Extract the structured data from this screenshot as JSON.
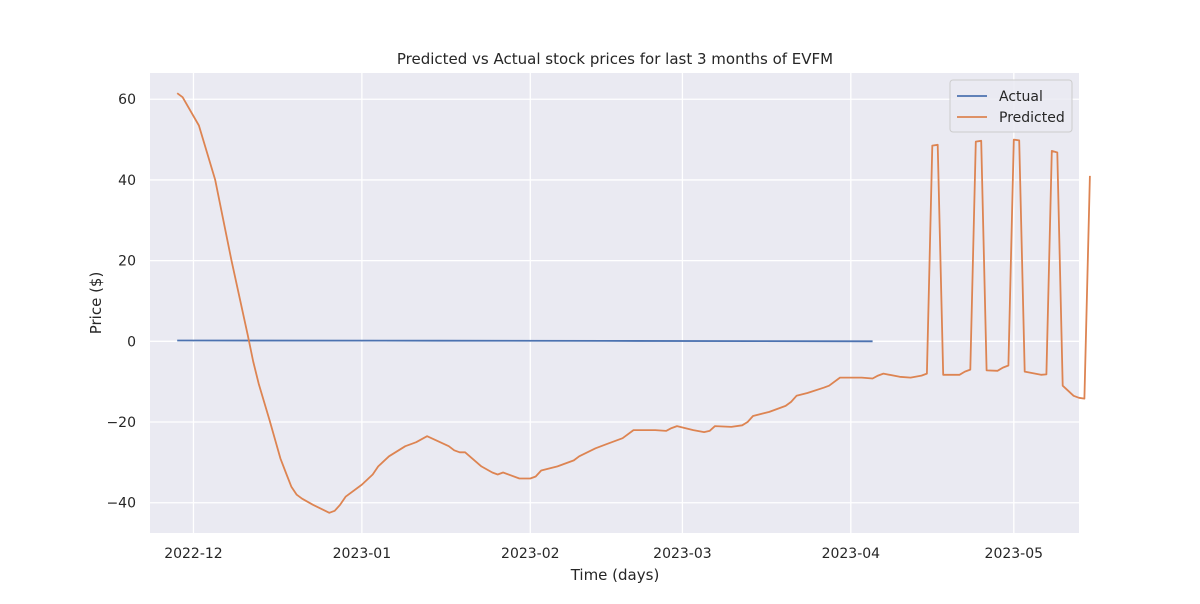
{
  "chart_data": {
    "type": "line",
    "title": "Predicted vs Actual stock prices for last 3 months of EVFM",
    "xlabel": "Time (days)",
    "ylabel": "Price ($)",
    "xlim": [
      "2022-11-23",
      "2023-05-13"
    ],
    "ylim": [
      -47.5,
      66.5
    ],
    "x_ticks": [
      "2022-12-01",
      "2023-01-01",
      "2023-02-01",
      "2023-03-01",
      "2023-04-01",
      "2023-05-01"
    ],
    "x_tick_labels": [
      "2022-12",
      "2023-01",
      "2023-02",
      "2023-03",
      "2023-04",
      "2023-05"
    ],
    "y_ticks": [
      -40,
      -20,
      0,
      20,
      40,
      60
    ],
    "y_tick_labels": [
      "−40",
      "−20",
      "0",
      "20",
      "40",
      "60"
    ],
    "grid": true,
    "legend_position": "top-right",
    "background_color": "#eaeaf2",
    "grid_color": "#ffffff",
    "series": [
      {
        "name": "Actual",
        "color": "#4c72b0",
        "points": [
          [
            "2022-11-28",
            0.2
          ],
          [
            "2023-01-15",
            0.15
          ],
          [
            "2023-02-15",
            0.1
          ],
          [
            "2023-03-15",
            0.05
          ],
          [
            "2023-04-05",
            0.0
          ]
        ]
      },
      {
        "name": "Predicted",
        "color": "#dd8452",
        "points": [
          [
            "2022-11-28",
            61.5
          ],
          [
            "2022-11-29",
            60.5
          ],
          [
            "2022-12-02",
            53.5
          ],
          [
            "2022-12-05",
            40.0
          ],
          [
            "2022-12-08",
            20.0
          ],
          [
            "2022-12-11",
            1.5
          ],
          [
            "2022-12-12",
            -5.0
          ],
          [
            "2022-12-13",
            -10.5
          ],
          [
            "2022-12-15",
            -19.5
          ],
          [
            "2022-12-17",
            -29.0
          ],
          [
            "2022-12-18",
            -32.5
          ],
          [
            "2022-12-19",
            -36.0
          ],
          [
            "2022-12-20",
            -38.0
          ],
          [
            "2022-12-21",
            -39.0
          ],
          [
            "2022-12-23",
            -40.5
          ],
          [
            "2022-12-26",
            -42.5
          ],
          [
            "2022-12-27",
            -42.0
          ],
          [
            "2022-12-28",
            -40.5
          ],
          [
            "2022-12-29",
            -38.5
          ],
          [
            "2023-01-01",
            -35.5
          ],
          [
            "2023-01-03",
            -33.0
          ],
          [
            "2023-01-04",
            -31.0
          ],
          [
            "2023-01-06",
            -28.5
          ],
          [
            "2023-01-09",
            -26.0
          ],
          [
            "2023-01-10",
            -25.5
          ],
          [
            "2023-01-11",
            -25.0
          ],
          [
            "2023-01-13",
            -23.5
          ],
          [
            "2023-01-17",
            -26.0
          ],
          [
            "2023-01-18",
            -27.0
          ],
          [
            "2023-01-19",
            -27.5
          ],
          [
            "2023-01-20",
            -27.5
          ],
          [
            "2023-01-23",
            -31.0
          ],
          [
            "2023-01-25",
            -32.5
          ],
          [
            "2023-01-26",
            -33.0
          ],
          [
            "2023-01-27",
            -32.5
          ],
          [
            "2023-01-30",
            -34.0
          ],
          [
            "2023-02-01",
            -34.0
          ],
          [
            "2023-02-02",
            -33.5
          ],
          [
            "2023-02-03",
            -32.0
          ],
          [
            "2023-02-06",
            -31.0
          ],
          [
            "2023-02-07",
            -30.5
          ],
          [
            "2023-02-09",
            -29.5
          ],
          [
            "2023-02-10",
            -28.5
          ],
          [
            "2023-02-13",
            -26.5
          ],
          [
            "2023-02-15",
            -25.5
          ],
          [
            "2023-02-17",
            -24.5
          ],
          [
            "2023-02-18",
            -24.0
          ],
          [
            "2023-02-20",
            -22.0
          ],
          [
            "2023-02-22",
            -22.0
          ],
          [
            "2023-02-24",
            -22.0
          ],
          [
            "2023-02-26",
            -22.2
          ],
          [
            "2023-02-27",
            -21.5
          ],
          [
            "2023-02-28",
            -21.0
          ],
          [
            "2023-03-03",
            -22.0
          ],
          [
            "2023-03-05",
            -22.5
          ],
          [
            "2023-03-06",
            -22.2
          ],
          [
            "2023-03-07",
            -21.0
          ],
          [
            "2023-03-10",
            -21.2
          ],
          [
            "2023-03-12",
            -20.8
          ],
          [
            "2023-03-13",
            -20.0
          ],
          [
            "2023-03-14",
            -18.5
          ],
          [
            "2023-03-17",
            -17.5
          ],
          [
            "2023-03-20",
            -16.0
          ],
          [
            "2023-03-21",
            -15.0
          ],
          [
            "2023-03-22",
            -13.5
          ],
          [
            "2023-03-24",
            -12.8
          ],
          [
            "2023-03-27",
            -11.5
          ],
          [
            "2023-03-28",
            -11.0
          ],
          [
            "2023-03-30",
            -9.0
          ],
          [
            "2023-04-03",
            -9.0
          ],
          [
            "2023-04-05",
            -9.2
          ],
          [
            "2023-04-06",
            -8.5
          ],
          [
            "2023-04-07",
            -8.0
          ],
          [
            "2023-04-10",
            -8.8
          ],
          [
            "2023-04-12",
            -9.0
          ],
          [
            "2023-04-14",
            -8.5
          ],
          [
            "2023-04-15",
            -8.0
          ],
          [
            "2023-04-16",
            48.5
          ],
          [
            "2023-04-17",
            48.7
          ],
          [
            "2023-04-18",
            -8.3
          ],
          [
            "2023-04-21",
            -8.3
          ],
          [
            "2023-04-22",
            -7.5
          ],
          [
            "2023-04-23",
            -7.0
          ],
          [
            "2023-04-24",
            49.5
          ],
          [
            "2023-04-25",
            49.7
          ],
          [
            "2023-04-26",
            -7.2
          ],
          [
            "2023-04-28",
            -7.3
          ],
          [
            "2023-04-29",
            -6.5
          ],
          [
            "2023-04-30",
            -6.0
          ],
          [
            "2023-05-01",
            50.0
          ],
          [
            "2023-05-02",
            49.8
          ],
          [
            "2023-05-03",
            -7.5
          ],
          [
            "2023-05-06",
            -8.3
          ],
          [
            "2023-05-07",
            -8.2
          ],
          [
            "2023-05-08",
            47.2
          ],
          [
            "2023-05-09",
            46.8
          ],
          [
            "2023-05-10",
            -11.0
          ],
          [
            "2023-05-12",
            -13.5
          ],
          [
            "2023-05-13",
            -14.0
          ],
          [
            "2023-05-14",
            -14.2
          ],
          [
            "2023-05-15",
            41.0
          ]
        ]
      }
    ]
  }
}
